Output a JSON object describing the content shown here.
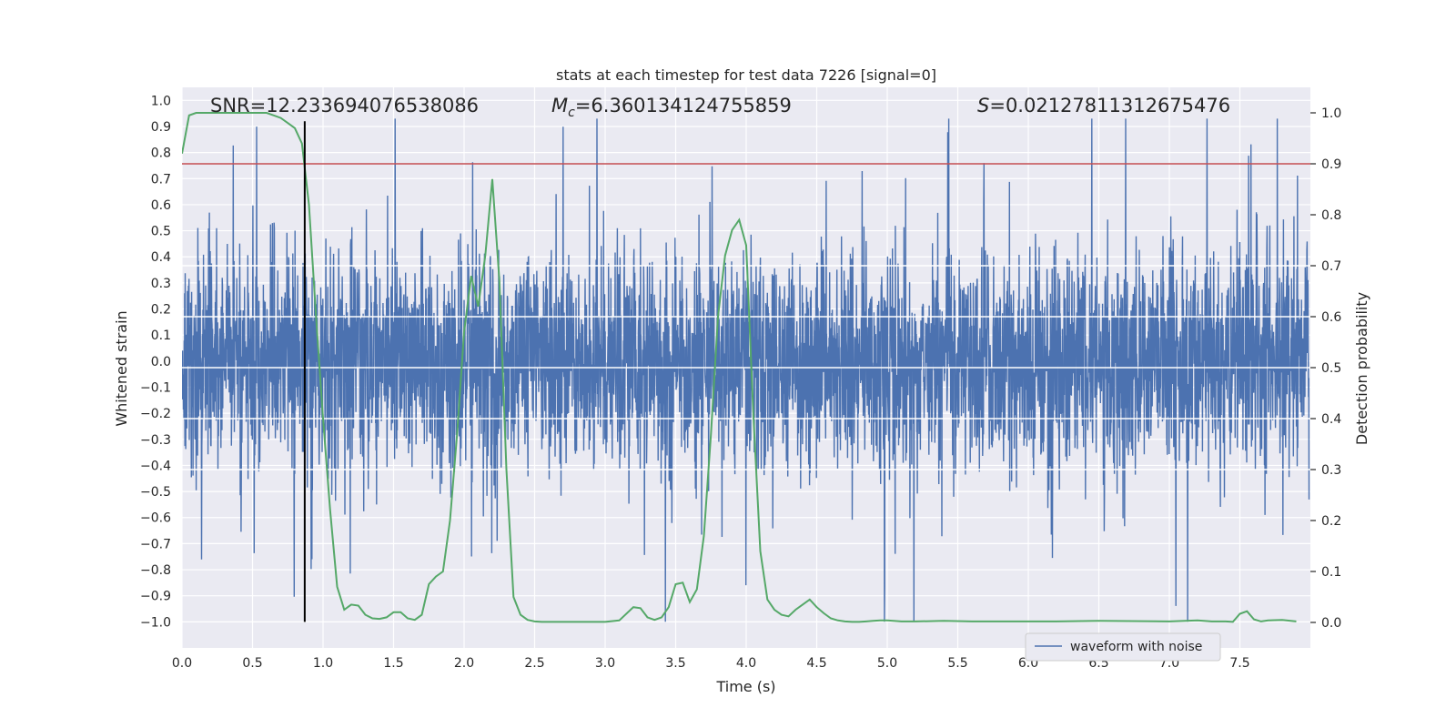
{
  "chart_data": {
    "type": "line",
    "title": "stats at each timestep for test data 7226 [signal=0]",
    "xlabel": "Time (s)",
    "ylabel": "Whitened strain",
    "y2label": "Detection probability",
    "xlim": [
      0.0,
      8.0
    ],
    "ylim": [
      -1.1,
      1.05
    ],
    "y2lim": [
      -0.05,
      1.05
    ],
    "xticks": [
      0.0,
      0.5,
      1.0,
      1.5,
      2.0,
      2.5,
      3.0,
      3.5,
      4.0,
      4.5,
      5.0,
      5.5,
      6.0,
      6.5,
      7.0,
      7.5
    ],
    "yticks": [
      -1.0,
      -0.9,
      -0.8,
      -0.7,
      -0.6,
      -0.5,
      -0.4,
      -0.3,
      -0.2,
      -0.1,
      0.0,
      0.1,
      0.2,
      0.3,
      0.4,
      0.5,
      0.6,
      0.7,
      0.8,
      0.9,
      1.0
    ],
    "y2ticks": [
      0.0,
      0.1,
      0.2,
      0.3,
      0.4,
      0.5,
      0.6,
      0.7,
      0.8,
      0.9,
      1.0
    ],
    "grid": true,
    "legend": {
      "entries": [
        "waveform with noise"
      ],
      "loc": "lower-right"
    },
    "annotations": {
      "snr": "SNR=12.233694076538086",
      "mc_symbol": "M",
      "mc_sub": "c",
      "mc_value": "=6.360134124755859",
      "s_symbol": "S",
      "s_value": "=0.02127811312675476"
    },
    "threshold": {
      "value": 0.9,
      "axis": "y2",
      "color": "#c44e52"
    },
    "vline": {
      "x": 0.87,
      "ymin": -1.0,
      "ymax": 0.92,
      "color": "#000000"
    },
    "series": [
      {
        "name": "waveform with noise",
        "axis": "y",
        "color": "#4c72b0",
        "description": "dense whitened strain noise sampled over 0 to 8 s, core band about ±0.45 with spikes to about ±0.93",
        "n_samples": 8192,
        "typical_amplitude": 0.45,
        "max_amplitude": 0.93
      },
      {
        "name": "detection probability",
        "axis": "y2",
        "color": "#55a868",
        "x": [
          0.0,
          0.05,
          0.1,
          0.2,
          0.3,
          0.4,
          0.5,
          0.6,
          0.7,
          0.75,
          0.8,
          0.85,
          0.9,
          0.95,
          1.0,
          1.05,
          1.1,
          1.15,
          1.2,
          1.25,
          1.3,
          1.35,
          1.4,
          1.45,
          1.5,
          1.55,
          1.6,
          1.65,
          1.7,
          1.75,
          1.8,
          1.85,
          1.9,
          1.95,
          2.0,
          2.05,
          2.1,
          2.15,
          2.2,
          2.25,
          2.3,
          2.35,
          2.4,
          2.45,
          2.5,
          2.55,
          2.6,
          2.65,
          2.7,
          2.8,
          3.0,
          3.1,
          3.2,
          3.25,
          3.3,
          3.35,
          3.4,
          3.45,
          3.5,
          3.55,
          3.6,
          3.65,
          3.7,
          3.75,
          3.8,
          3.85,
          3.9,
          3.95,
          4.0,
          4.05,
          4.1,
          4.15,
          4.2,
          4.25,
          4.3,
          4.35,
          4.4,
          4.45,
          4.5,
          4.55,
          4.6,
          4.65,
          4.7,
          4.75,
          4.8,
          4.85,
          4.9,
          4.95,
          5.0,
          5.1,
          5.2,
          5.4,
          5.6,
          5.8,
          6.0,
          6.2,
          6.5,
          7.0,
          7.2,
          7.3,
          7.4,
          7.45,
          7.5,
          7.55,
          7.6,
          7.65,
          7.7,
          7.8,
          7.9
        ],
        "values": [
          0.92,
          0.995,
          1.0,
          1.0,
          1.0,
          1.0,
          1.0,
          1.0,
          0.99,
          0.98,
          0.97,
          0.94,
          0.82,
          0.6,
          0.4,
          0.22,
          0.07,
          0.025,
          0.035,
          0.033,
          0.015,
          0.008,
          0.007,
          0.01,
          0.02,
          0.02,
          0.008,
          0.005,
          0.015,
          0.075,
          0.09,
          0.1,
          0.2,
          0.37,
          0.57,
          0.68,
          0.62,
          0.72,
          0.87,
          0.67,
          0.3,
          0.05,
          0.015,
          0.005,
          0.002,
          0.001,
          0.001,
          0.001,
          0.001,
          0.001,
          0.001,
          0.004,
          0.03,
          0.028,
          0.01,
          0.005,
          0.01,
          0.03,
          0.075,
          0.078,
          0.04,
          0.065,
          0.17,
          0.37,
          0.6,
          0.72,
          0.77,
          0.79,
          0.74,
          0.41,
          0.14,
          0.045,
          0.025,
          0.015,
          0.012,
          0.025,
          0.035,
          0.045,
          0.03,
          0.018,
          0.008,
          0.004,
          0.002,
          0.001,
          0.001,
          0.002,
          0.003,
          0.004,
          0.004,
          0.002,
          0.002,
          0.003,
          0.002,
          0.002,
          0.002,
          0.002,
          0.003,
          0.002,
          0.004,
          0.002,
          0.002,
          0.001,
          0.017,
          0.022,
          0.006,
          0.002,
          0.004,
          0.005,
          0.002
        ]
      }
    ]
  }
}
